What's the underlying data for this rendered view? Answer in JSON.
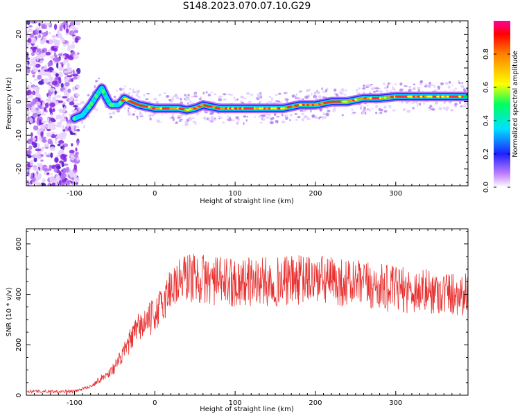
{
  "title": "S148.2023.070.07.10.G29",
  "chart_data": [
    {
      "type": "heatmap",
      "title": "S148.2023.070.07.10.G29",
      "xlabel": "Height of straight line (km)",
      "ylabel": "Frequency (Hz)",
      "xlim": [
        -160,
        390
      ],
      "ylim": [
        -25,
        24
      ],
      "x_ticks": [
        -100,
        0,
        100,
        200,
        300
      ],
      "y_ticks": [
        -20,
        -10,
        0,
        10,
        20
      ],
      "colorbar": {
        "label": "Normalized spectral amplitude",
        "range": [
          0,
          1
        ],
        "ticks": [
          "0.0",
          "0.2",
          "0.4",
          "0.6",
          "0.8"
        ]
      },
      "ridge": {
        "x": [
          -100,
          -90,
          -80,
          -72,
          -66,
          -60,
          -55,
          -45,
          -38,
          -30,
          -20,
          -10,
          0,
          20,
          30,
          40,
          50,
          60,
          80,
          100,
          130,
          160,
          180,
          200,
          220,
          240,
          260,
          280,
          300,
          320,
          350,
          385
        ],
        "y": [
          -5,
          -4,
          -1,
          2,
          4,
          1,
          -1,
          -1,
          1,
          0,
          -1,
          -1.5,
          -2,
          -2,
          -2,
          -2.5,
          -2,
          -1,
          -2,
          -2,
          -2,
          -2,
          -1,
          -1,
          0,
          0,
          1,
          1,
          1.5,
          1.5,
          1.5,
          1.5
        ]
      }
    },
    {
      "type": "line",
      "xlabel": "Height of straight line (km)",
      "ylabel": "SNR (10 * v/v)",
      "xlim": [
        -160,
        390
      ],
      "ylim": [
        0,
        660
      ],
      "x_ticks": [
        -100,
        0,
        100,
        200,
        300
      ],
      "y_ticks": [
        0,
        200,
        400,
        600
      ],
      "color": "#e83030",
      "envelope": {
        "x": [
          -160,
          -120,
          -100,
          -80,
          -70,
          -60,
          -50,
          -40,
          -30,
          -20,
          -10,
          0,
          10,
          20,
          40,
          60,
          80,
          100,
          150,
          200,
          250,
          300,
          350,
          390
        ],
        "y": [
          15,
          15,
          15,
          35,
          60,
          80,
          110,
          160,
          220,
          270,
          290,
          320,
          360,
          430,
          470,
          460,
          450,
          450,
          450,
          460,
          440,
          420,
          410,
          400
        ]
      }
    }
  ]
}
